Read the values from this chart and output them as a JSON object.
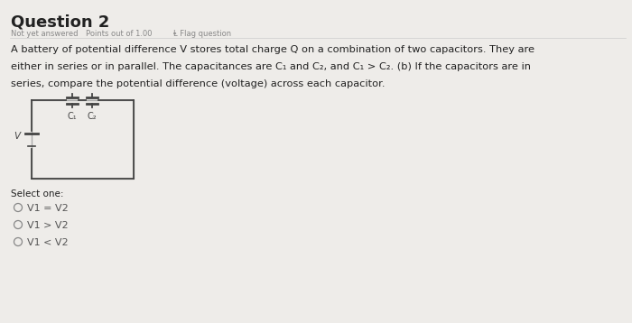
{
  "title": "Question 2",
  "sub1": "Not yet answered",
  "sub2": "Points out of 1.00",
  "sub3": "Ⱡ Flag question",
  "body1": "A battery of potential difference V stores total charge Q on a combination of two capacitors. They are",
  "body2": "either in series or in parallel. The capacitances are C₁ and C₂, and C₁ > C₂. (b) If the capacitors are in",
  "body3": "series, compare the potential difference (voltage) across each capacitor.",
  "select": "Select one:",
  "options": [
    "V1 = V2",
    "V1 > V2",
    "V1 < V2"
  ],
  "bg_color": "#eeece9",
  "text_dark": "#222222",
  "text_mid": "#555555",
  "text_light": "#888888",
  "circuit_col": "#444444",
  "v_label": "V",
  "c1_label": "C₁",
  "c2_label": "C₂"
}
